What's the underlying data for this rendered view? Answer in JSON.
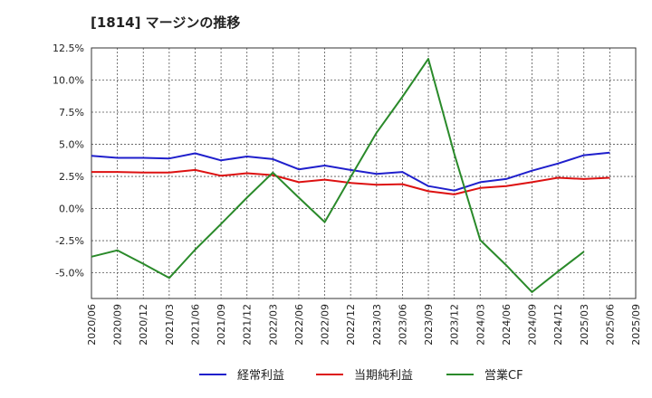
{
  "chart_data": {
    "type": "line",
    "title": "[1814]  マージンの推移",
    "x": [
      "2020/06",
      "2020/09",
      "2020/12",
      "2021/03",
      "2021/06",
      "2021/09",
      "2021/12",
      "2022/03",
      "2022/06",
      "2022/09",
      "2022/12",
      "2023/03",
      "2023/06",
      "2023/09",
      "2023/12",
      "2024/03",
      "2024/06",
      "2024/09",
      "2024/12",
      "2025/03",
      "2025/06",
      "2025/09"
    ],
    "y_ticks": [
      "12.5%",
      "10.0%",
      "7.5%",
      "5.0%",
      "2.5%",
      "0.0%",
      "-2.5%",
      "-5.0%"
    ],
    "ylim": [
      -7.0,
      12.5
    ],
    "grid": true,
    "legend_position": "bottom",
    "series": [
      {
        "name": "経常利益",
        "color": "#1f1fcc",
        "values": [
          4.1,
          3.95,
          3.95,
          3.9,
          4.3,
          3.75,
          4.05,
          3.85,
          3.05,
          3.35,
          3.0,
          2.7,
          2.85,
          1.75,
          1.4,
          2.05,
          2.3,
          2.95,
          3.5,
          4.15,
          4.35,
          null
        ]
      },
      {
        "name": "当期純利益",
        "color": "#dd1111",
        "values": [
          2.85,
          2.85,
          2.8,
          2.8,
          3.0,
          2.55,
          2.75,
          2.6,
          2.05,
          2.25,
          2.0,
          1.85,
          1.9,
          1.35,
          1.1,
          1.6,
          1.75,
          2.05,
          2.4,
          2.3,
          2.4,
          null
        ]
      },
      {
        "name": "営業CF",
        "color": "#2a8a2a",
        "values": [
          -3.75,
          -3.25,
          -4.3,
          -5.4,
          -3.2,
          -1.2,
          0.85,
          2.8,
          0.85,
          -1.05,
          2.45,
          5.9,
          8.7,
          11.65,
          4.25,
          -2.45,
          -4.4,
          -6.5,
          -4.9,
          -3.35,
          null,
          null
        ]
      }
    ]
  }
}
